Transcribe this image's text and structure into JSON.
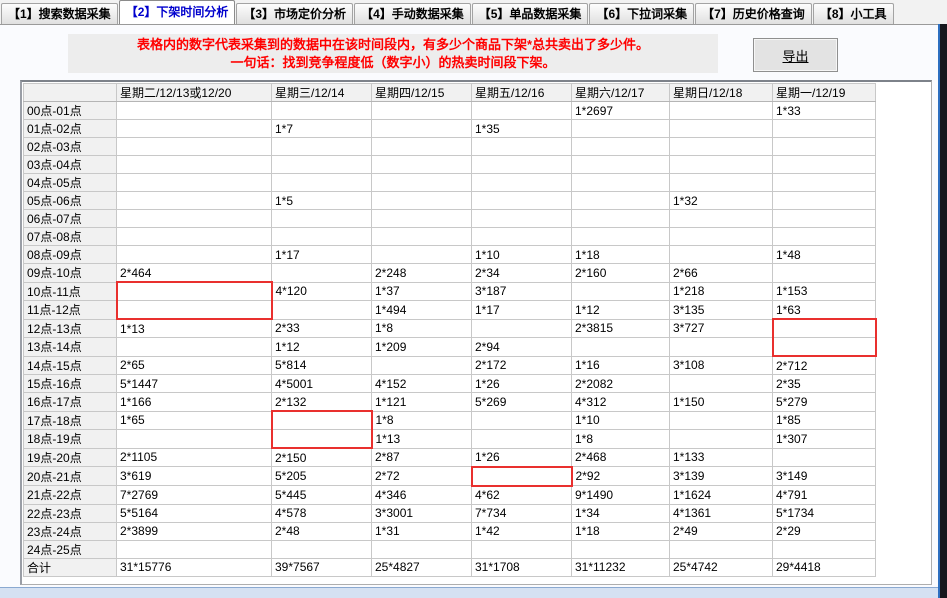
{
  "tabs": {
    "items": [
      {
        "label": "【1】搜索数据采集",
        "active": false
      },
      {
        "label": "【2】下架时间分析",
        "active": true
      },
      {
        "label": "【3】市场定价分析",
        "active": false
      },
      {
        "label": "【4】手动数据采集",
        "active": false
      },
      {
        "label": "【5】单品数据采集",
        "active": false
      },
      {
        "label": "【6】下拉词采集",
        "active": false
      },
      {
        "label": "【7】历史价格查询",
        "active": false
      },
      {
        "label": "【8】小工具",
        "active": false
      }
    ]
  },
  "notice": {
    "line1": "表格内的数字代表采集到的数据中在该时间段内，有多少个商品下架*总共卖出了多少件。",
    "line2": "一句话：找到竞争程度低（数字小）的热卖时间段下架。"
  },
  "toolbar": {
    "export_label": "导出"
  },
  "colors": {
    "notice_text": "#ff0000",
    "active_tab_text": "#0000cd",
    "highlight_border": "#e9302e"
  },
  "table": {
    "columns": [
      "",
      "星期二/12/13或12/20",
      "星期三/12/14",
      "星期四/12/15",
      "星期五/12/16",
      "星期六/12/17",
      "星期日/12/18",
      "星期一/12/19"
    ],
    "rows": [
      {
        "label": "00点-01点",
        "cells": [
          "",
          "",
          "",
          "",
          "1*2697",
          "",
          "1*33"
        ]
      },
      {
        "label": "01点-02点",
        "cells": [
          "",
          "1*7",
          "",
          "1*35",
          "",
          "",
          ""
        ]
      },
      {
        "label": "02点-03点",
        "cells": [
          "",
          "",
          "",
          "",
          "",
          "",
          ""
        ]
      },
      {
        "label": "03点-04点",
        "cells": [
          "",
          "",
          "",
          "",
          "",
          "",
          ""
        ]
      },
      {
        "label": "04点-05点",
        "cells": [
          "",
          "",
          "",
          "",
          "",
          "",
          ""
        ]
      },
      {
        "label": "05点-06点",
        "cells": [
          "",
          "1*5",
          "",
          "",
          "",
          "1*32",
          ""
        ]
      },
      {
        "label": "06点-07点",
        "cells": [
          "",
          "",
          "",
          "",
          "",
          "",
          ""
        ]
      },
      {
        "label": "07点-08点",
        "cells": [
          "",
          "",
          "",
          "",
          "",
          "",
          ""
        ]
      },
      {
        "label": "08点-09点",
        "cells": [
          "",
          "1*17",
          "",
          "1*10",
          "1*18",
          "",
          "1*48"
        ]
      },
      {
        "label": "09点-10点",
        "cells": [
          "2*464",
          "",
          "2*248",
          "2*34",
          "2*160",
          "2*66",
          ""
        ]
      },
      {
        "label": "10点-11点",
        "cells": [
          "",
          "4*120",
          "1*37",
          "3*187",
          "",
          "1*218",
          "1*153"
        ]
      },
      {
        "label": "11点-12点",
        "cells": [
          "",
          "",
          "1*494",
          "1*17",
          "1*12",
          "3*135",
          "1*63"
        ]
      },
      {
        "label": "12点-13点",
        "cells": [
          "1*13",
          "2*33",
          "1*8",
          "",
          "2*3815",
          "3*727",
          ""
        ]
      },
      {
        "label": "13点-14点",
        "cells": [
          "",
          "1*12",
          "1*209",
          "2*94",
          "",
          "",
          ""
        ]
      },
      {
        "label": "14点-15点",
        "cells": [
          "2*65",
          "5*814",
          "",
          "2*172",
          "1*16",
          "3*108",
          "2*712"
        ]
      },
      {
        "label": "15点-16点",
        "cells": [
          "5*1447",
          "4*5001",
          "4*152",
          "1*26",
          "2*2082",
          "",
          "2*35"
        ]
      },
      {
        "label": "16点-17点",
        "cells": [
          "1*166",
          "2*132",
          "1*121",
          "5*269",
          "4*312",
          "1*150",
          "5*279"
        ]
      },
      {
        "label": "17点-18点",
        "cells": [
          "1*65",
          "",
          "1*8",
          "",
          "1*10",
          "",
          "1*85"
        ]
      },
      {
        "label": "18点-19点",
        "cells": [
          "",
          "",
          "1*13",
          "",
          "1*8",
          "",
          "1*307"
        ]
      },
      {
        "label": "19点-20点",
        "cells": [
          "2*1105",
          "2*150",
          "2*87",
          "1*26",
          "2*468",
          "1*133",
          ""
        ]
      },
      {
        "label": "20点-21点",
        "cells": [
          "3*619",
          "5*205",
          "2*72",
          "",
          "2*92",
          "3*139",
          "3*149"
        ]
      },
      {
        "label": "21点-22点",
        "cells": [
          "7*2769",
          "5*445",
          "4*346",
          "4*62",
          "9*1490",
          "1*1624",
          "4*791"
        ]
      },
      {
        "label": "22点-23点",
        "cells": [
          "5*5164",
          "4*578",
          "3*3001",
          "7*734",
          "1*34",
          "4*1361",
          "5*1734"
        ]
      },
      {
        "label": "23点-24点",
        "cells": [
          "2*3899",
          "2*48",
          "1*31",
          "1*42",
          "1*18",
          "2*49",
          "2*29"
        ]
      },
      {
        "label": "24点-25点",
        "cells": [
          "",
          "",
          "",
          "",
          "",
          "",
          ""
        ]
      }
    ],
    "footer": {
      "label": "合计",
      "cells": [
        "31*15776",
        "39*7567",
        "25*4827",
        "31*1708",
        "31*11232",
        "25*4742",
        "29*4418"
      ]
    },
    "highlights": [
      {
        "row": 10,
        "col": 1,
        "part": "top"
      },
      {
        "row": 11,
        "col": 1,
        "part": "bottom"
      },
      {
        "row": 12,
        "col": 7,
        "part": "top"
      },
      {
        "row": 13,
        "col": 7,
        "part": "bottom"
      },
      {
        "row": 17,
        "col": 2,
        "part": "top"
      },
      {
        "row": 18,
        "col": 2,
        "part": "bottom"
      },
      {
        "row": 20,
        "col": 4,
        "part": "single"
      }
    ]
  }
}
